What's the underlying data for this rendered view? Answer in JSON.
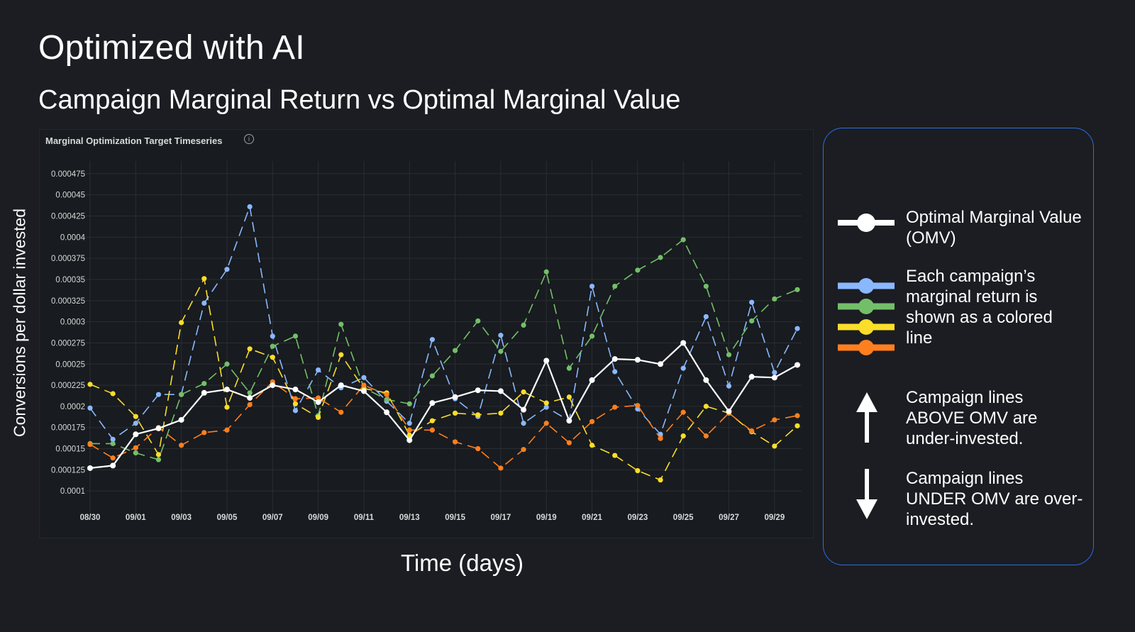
{
  "title": "Optimized with AI",
  "subtitle": "Campaign Marginal Return vs Optimal Marginal Value",
  "panel": {
    "title": "Marginal Optimization Target Timeseries",
    "info_icon": "info-icon"
  },
  "axis": {
    "ylabel": "Conversions per dollar invested",
    "xlabel": "Time (days)"
  },
  "legend": {
    "omv_label": "Optimal Marginal Value (OMV)",
    "campaign_label": "Each campaign’s marginal return is shown as a colored line",
    "above_label": "Campaign lines ABOVE OMV are under-invested.",
    "under_label": "Campaign lines UNDER OMV are over-invested.",
    "arrow_up_icon": "arrow-up-icon",
    "arrow_down_icon": "arrow-down-icon"
  },
  "chart_data": {
    "type": "line",
    "x": [
      "08/30",
      "08/31",
      "09/01",
      "09/02",
      "09/03",
      "09/04",
      "09/05",
      "09/06",
      "09/07",
      "09/08",
      "09/09",
      "09/10",
      "09/11",
      "09/12",
      "09/13",
      "09/14",
      "09/15",
      "09/16",
      "09/17",
      "09/18",
      "09/19",
      "09/20",
      "09/21",
      "09/22",
      "09/23",
      "09/24",
      "09/25",
      "09/26",
      "09/27",
      "09/28",
      "09/29",
      "09/30"
    ],
    "x_tick_labels": [
      "08/30",
      "09/01",
      "09/03",
      "09/05",
      "09/07",
      "09/09",
      "09/11",
      "09/13",
      "09/15",
      "09/17",
      "09/19",
      "09/21",
      "09/23",
      "09/25",
      "09/27",
      "09/29"
    ],
    "y_tick_labels": [
      "0.000475",
      "0.00045",
      "0.000425",
      "0.0004",
      "0.000375",
      "0.00035",
      "0.000325",
      "0.0003",
      "0.000275",
      "0.00025",
      "0.000225",
      "0.0002",
      "0.000175",
      "0.00015",
      "0.000125",
      "0.0001"
    ],
    "ylim": [
      8e-05,
      0.000485
    ],
    "grid": true,
    "series": [
      {
        "name": "Optimal Marginal Value (OMV)",
        "color": "#ffffff",
        "dashed": false,
        "values": [
          0.000127,
          0.00013,
          0.000167,
          0.000174,
          0.000184,
          0.000216,
          0.00022,
          0.00021,
          0.000225,
          0.00022,
          0.000205,
          0.000225,
          0.000218,
          0.000193,
          0.00016,
          0.000204,
          0.000211,
          0.000219,
          0.000218,
          0.000196,
          0.000254,
          0.000183,
          0.000231,
          0.000256,
          0.000255,
          0.00025,
          0.000275,
          0.000231,
          0.000194,
          0.000235,
          0.000234,
          0.000249
        ]
      },
      {
        "color": "#8ab8ff",
        "dashed": true,
        "values": [
          0.000198,
          0.000161,
          0.00018,
          0.000214,
          0.000214,
          0.000322,
          0.000362,
          0.000436,
          0.000283,
          0.000195,
          0.000243,
          0.000222,
          0.000234,
          0.000206,
          0.00018,
          0.000279,
          0.000209,
          0.000188,
          0.000284,
          0.00018,
          0.000199,
          0.000183,
          0.000342,
          0.000241,
          0.000197,
          0.000167,
          0.000245,
          0.000306,
          0.000224,
          0.000323,
          0.00024,
          0.000292
        ]
      },
      {
        "color": "#73bf69",
        "dashed": true,
        "values": [
          0.000156,
          0.000156,
          0.000145,
          0.000137,
          0.000214,
          0.000227,
          0.00025,
          0.000216,
          0.000271,
          0.000283,
          0.000189,
          0.000297,
          0.000222,
          0.000208,
          0.000203,
          0.000236,
          0.000266,
          0.000301,
          0.000265,
          0.000296,
          0.000359,
          0.000245,
          0.000283,
          0.000342,
          0.000361,
          0.000376,
          0.000397,
          0.000342,
          0.000261,
          0.000301,
          0.000327,
          0.000338
        ]
      },
      {
        "color": "#fade2a",
        "dashed": true,
        "values": [
          0.000226,
          0.000215,
          0.000188,
          0.000143,
          0.000299,
          0.000351,
          0.000199,
          0.000268,
          0.000258,
          0.000203,
          0.000187,
          0.000261,
          0.000221,
          0.000216,
          0.000166,
          0.000183,
          0.000192,
          0.00019,
          0.000192,
          0.000217,
          0.000204,
          0.000211,
          0.000154,
          0.000142,
          0.000124,
          0.000113,
          0.000165,
          0.0002,
          0.000192,
          0.00017,
          0.000153,
          0.000177
        ]
      },
      {
        "color": "#ff7f1e",
        "dashed": true,
        "values": [
          0.000155,
          0.000139,
          0.000151,
          0.000175,
          0.000154,
          0.000169,
          0.000172,
          0.000202,
          0.000229,
          0.000209,
          0.00021,
          0.000193,
          0.000225,
          0.000214,
          0.000172,
          0.000172,
          0.000158,
          0.00015,
          0.000127,
          0.000149,
          0.00018,
          0.000157,
          0.000182,
          0.000199,
          0.000201,
          0.000162,
          0.000193,
          0.000165,
          0.000192,
          0.000171,
          0.000184,
          0.000189
        ]
      }
    ]
  }
}
